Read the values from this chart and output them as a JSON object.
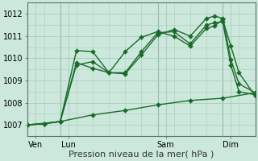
{
  "xlabel": "Pression niveau de la mer( hPa )",
  "bg_color": "#cce8dc",
  "grid_color": "#aaccbb",
  "line_color": "#1a6b2a",
  "ylim": [
    1006.5,
    1012.5
  ],
  "xlim": [
    0,
    14
  ],
  "xtick_positions": [
    0.5,
    2.5,
    8.5,
    12.5
  ],
  "xtick_labels": [
    "Ven",
    "Lun",
    "Sam",
    "Dim"
  ],
  "ytick_positions": [
    1007,
    1008,
    1009,
    1010,
    1011,
    1012
  ],
  "series": [
    {
      "x": [
        0,
        1,
        2,
        3,
        4,
        5,
        6,
        7,
        8,
        9,
        10,
        11,
        11.5,
        12,
        12.5,
        13,
        14
      ],
      "y": [
        1007.0,
        1007.05,
        1007.15,
        1010.35,
        1010.3,
        1009.35,
        1009.3,
        1010.15,
        1011.05,
        1011.3,
        1011.0,
        1011.8,
        1011.9,
        1011.8,
        1009.95,
        1008.85,
        1008.45
      ]
    },
    {
      "x": [
        0,
        1,
        2,
        3,
        4,
        5,
        6,
        7,
        8,
        9,
        10,
        11,
        11.5,
        12,
        12.5,
        13,
        14
      ],
      "y": [
        1007.0,
        1007.05,
        1007.15,
        1009.8,
        1009.55,
        1009.35,
        1009.35,
        1010.3,
        1011.15,
        1011.2,
        1010.65,
        1011.5,
        1011.6,
        1011.65,
        1009.7,
        1008.5,
        1008.35
      ]
    },
    {
      "x": [
        0,
        1,
        2,
        3,
        4,
        5,
        6,
        7,
        8,
        9,
        10,
        11,
        11.5,
        12,
        12.5,
        13,
        14
      ],
      "y": [
        1007.0,
        1007.05,
        1007.15,
        1009.7,
        1009.85,
        1009.35,
        1010.3,
        1010.95,
        1011.2,
        1011.0,
        1010.55,
        1011.35,
        1011.45,
        1011.75,
        1010.55,
        1009.35,
        1008.3
      ]
    },
    {
      "x": [
        0,
        2,
        4,
        6,
        8,
        10,
        12,
        14
      ],
      "y": [
        1007.0,
        1007.15,
        1007.45,
        1007.65,
        1007.9,
        1008.1,
        1008.2,
        1008.45
      ]
    }
  ],
  "vline_positions": [
    2,
    8,
    12
  ],
  "markersize": 3.0
}
